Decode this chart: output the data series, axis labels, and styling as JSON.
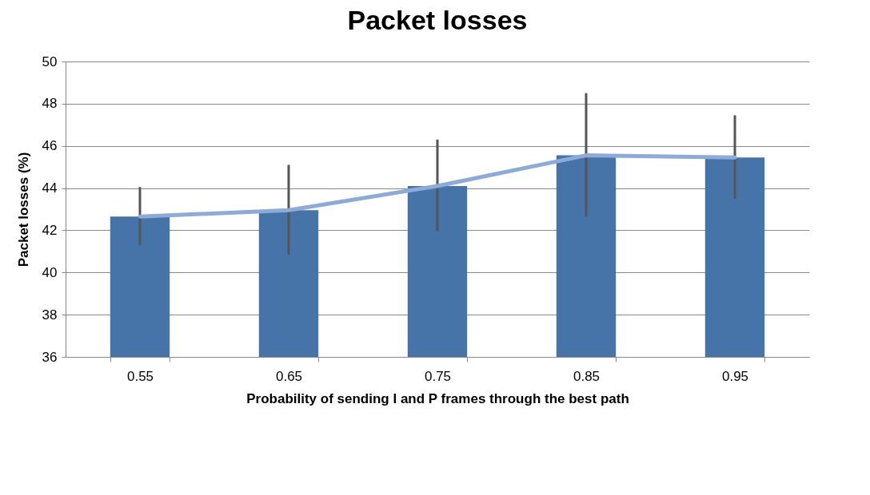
{
  "chart_data": {
    "type": "bar",
    "title": "Packet losses",
    "xlabel": "Probability of sending I and P frames through the best path",
    "ylabel": "Packet losses (%)",
    "categories": [
      "0.55",
      "0.65",
      "0.75",
      "0.85",
      "0.95"
    ],
    "series": [
      {
        "color": "#4673a8",
        "values": [
          42.65,
          42.95,
          44.1,
          45.55,
          45.45
        ],
        "errors": [
          [
            41.3,
            44.05
          ],
          [
            40.85,
            45.1
          ],
          [
            41.95,
            46.3
          ],
          [
            42.65,
            48.5
          ],
          [
            43.5,
            47.45
          ]
        ]
      },
      {
        "type": "line",
        "color": "#8eaad6",
        "values": [
          42.65,
          42.95,
          44.1,
          45.55,
          45.45
        ]
      }
    ],
    "ylim": [
      36,
      50
    ],
    "yticks": [
      36,
      38,
      40,
      42,
      44,
      46,
      48,
      50
    ],
    "grid": "y"
  }
}
